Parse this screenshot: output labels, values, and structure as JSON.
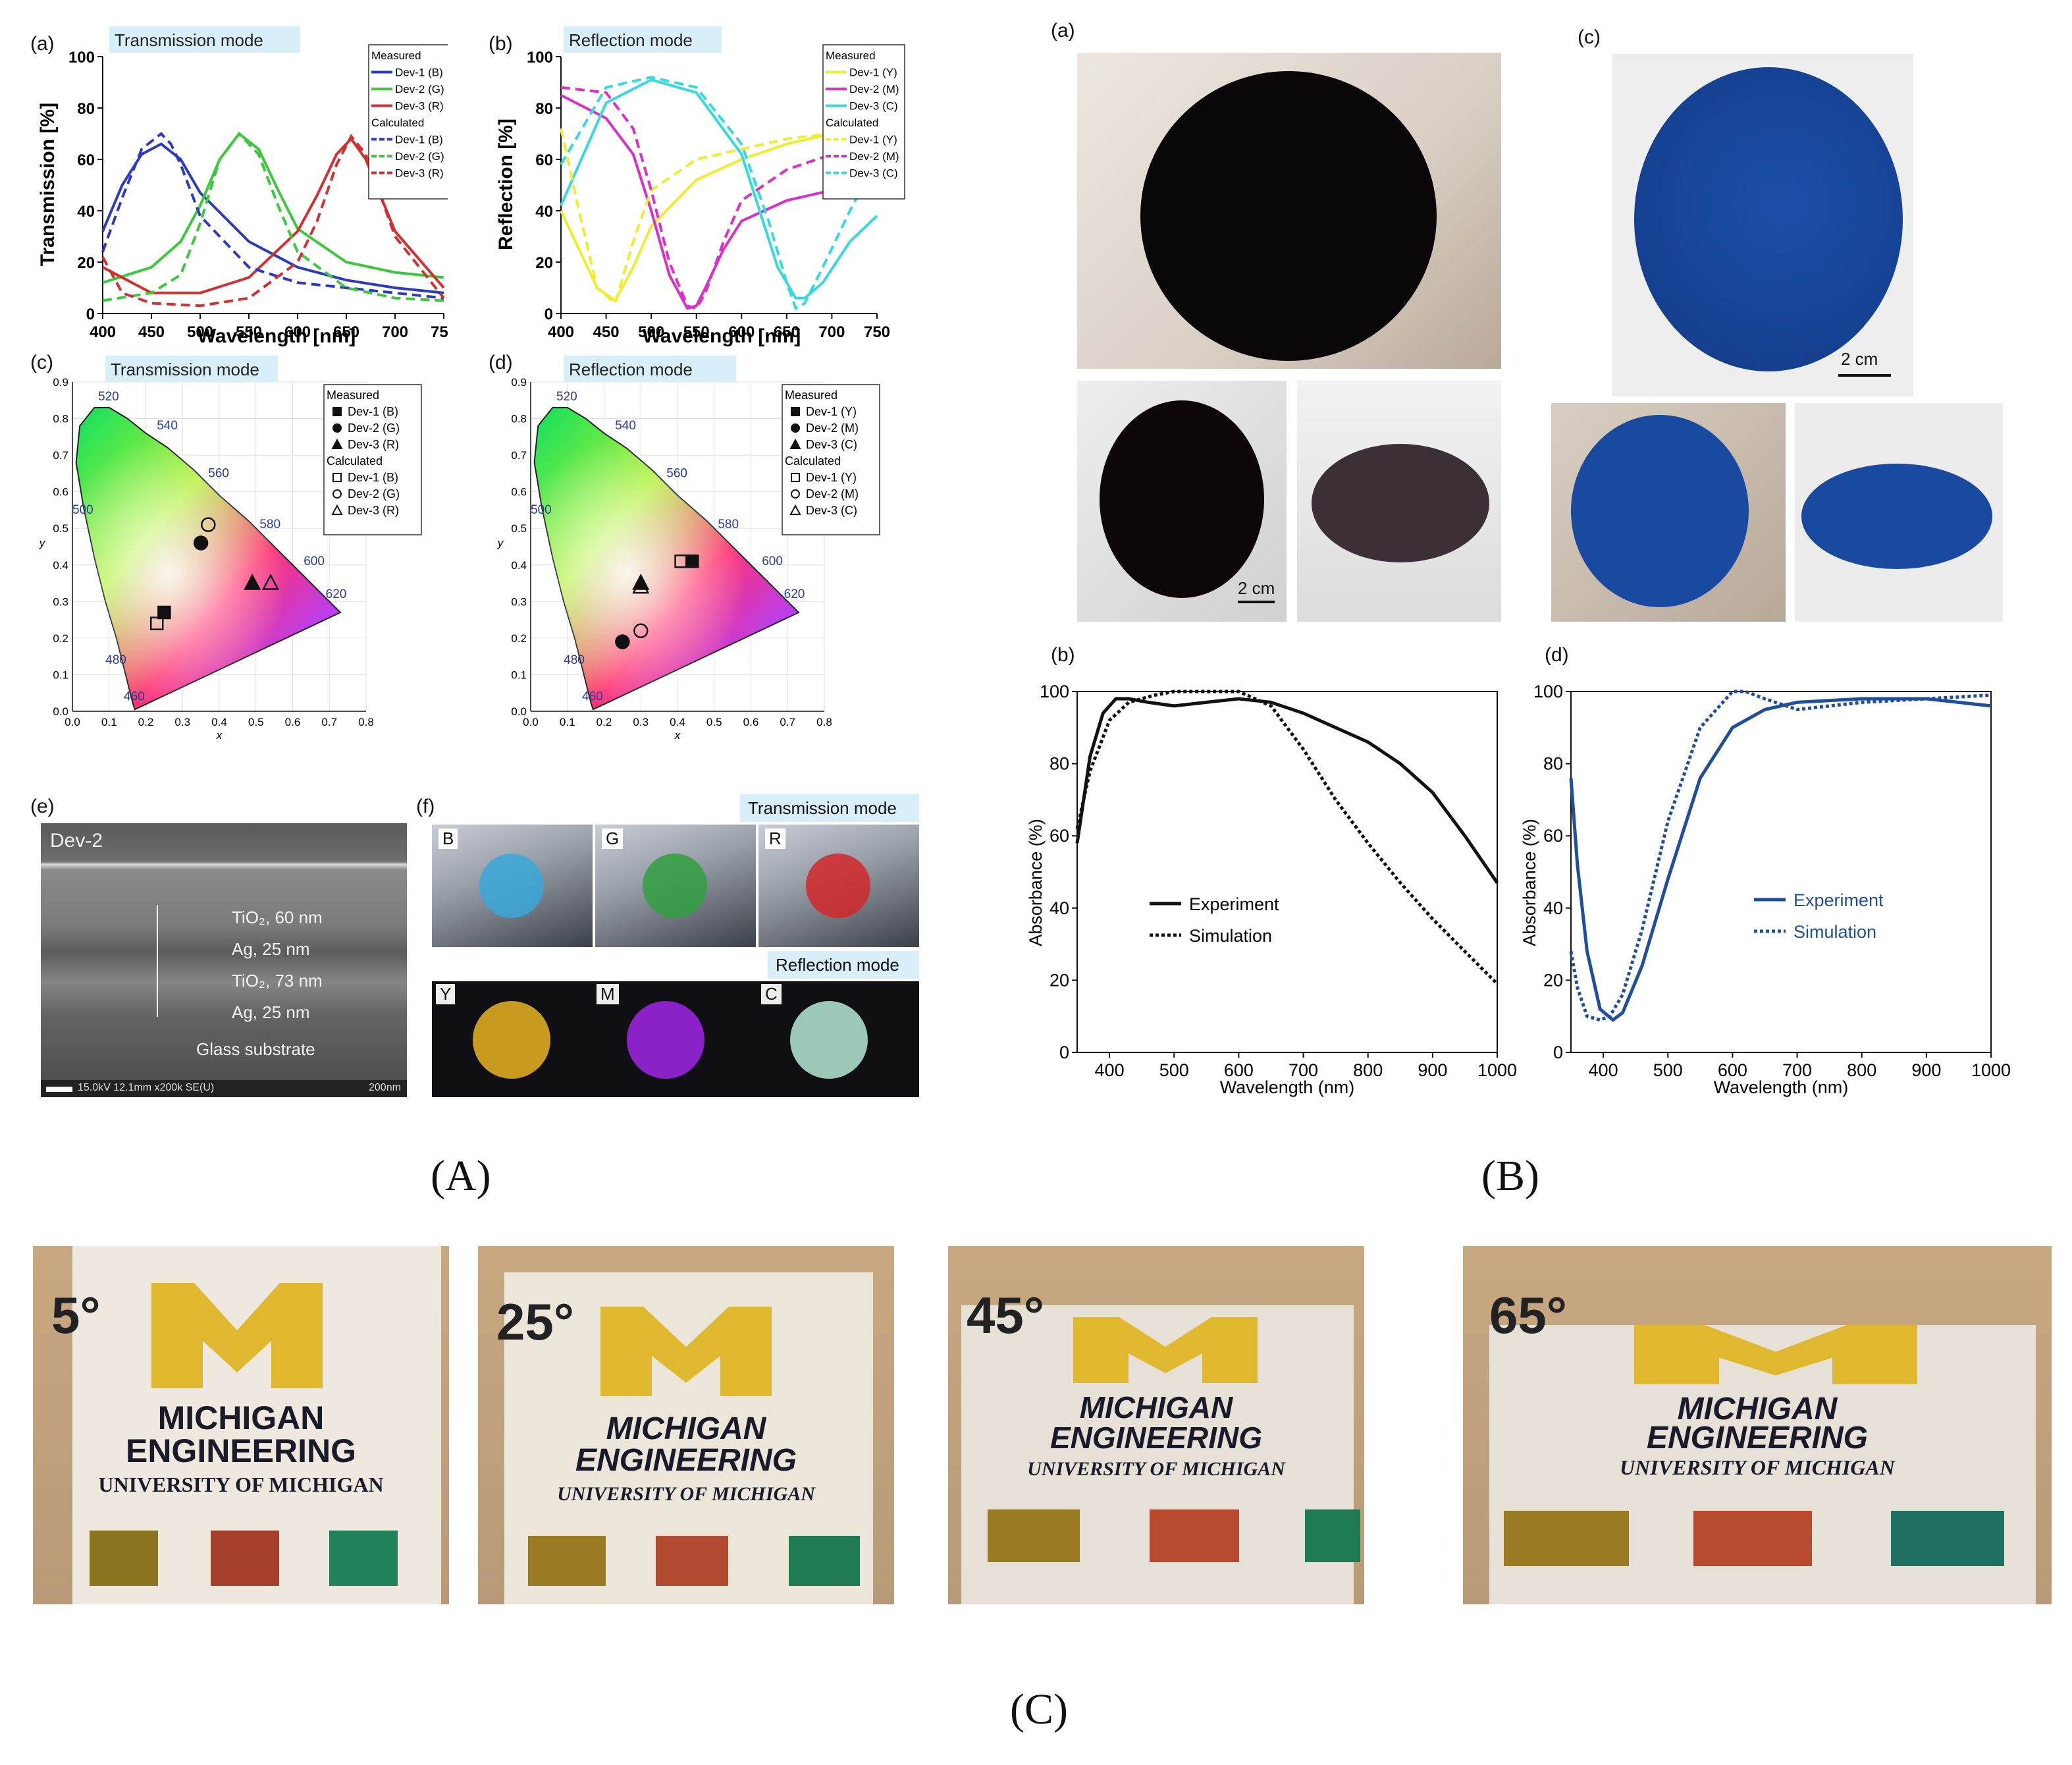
{
  "captions": {
    "A": "(A)",
    "B": "(B)",
    "C": "(C)"
  },
  "panelA": {
    "labels": {
      "a": "(a)",
      "b": "(b)",
      "c": "(c)",
      "d": "(d)",
      "e": "(e)",
      "f": "(f)"
    },
    "plot_a": {
      "mode_tag": "Transmission mode",
      "xlabel": "Wavelength [nm]",
      "ylabel": "Transmission [%]",
      "legend": {
        "measured_title": "Measured",
        "measured": [
          "Dev-1 (B)",
          "Dev-2 (G)",
          "Dev-3 (R)"
        ],
        "calculated_title": "Calculated",
        "calculated": [
          "Dev-1 (B)",
          "Dev-2 (G)",
          "Dev-3 (R)"
        ]
      }
    },
    "plot_b": {
      "mode_tag": "Reflection mode",
      "xlabel": "Wavelength [nm]",
      "ylabel": "Reflection [%]",
      "legend": {
        "measured_title": "Measured",
        "measured": [
          "Dev-1 (Y)",
          "Dev-2 (M)",
          "Dev-3 (C)"
        ],
        "calculated_title": "Calculated",
        "calculated": [
          "Dev-1 (Y)",
          "Dev-2 (M)",
          "Dev-3 (C)"
        ]
      }
    },
    "cie_c": {
      "mode_tag": "Transmission mode",
      "legend": {
        "measured_title": "Measured",
        "measured": [
          "Dev-1 (B)",
          "Dev-2 (G)",
          "Dev-3 (R)"
        ],
        "calculated_title": "Calculated",
        "calculated": [
          "Dev-1 (B)",
          "Dev-2 (G)",
          "Dev-3 (R)"
        ]
      }
    },
    "cie_d": {
      "mode_tag": "Reflection mode",
      "legend": {
        "measured_title": "Measured",
        "measured": [
          "Dev-1 (Y)",
          "Dev-2 (M)",
          "Dev-3 (C)"
        ],
        "calculated_title": "Calculated",
        "calculated": [
          "Dev-1 (Y)",
          "Dev-2 (M)",
          "Dev-3 (C)"
        ]
      }
    },
    "sem_e": {
      "device": "Dev-2",
      "layers": [
        "TiO₂, 60 nm",
        "Ag, 25 nm",
        "TiO₂, 73 nm",
        "Ag, 25 nm",
        "Glass substrate"
      ],
      "info": "15.0kV 12.1mm x200k SE(U)",
      "scale": "200nm"
    },
    "photos_f": {
      "transmission_tag": "Transmission mode",
      "reflection_tag": "Reflection mode",
      "transmission_letters": [
        "B",
        "G",
        "R"
      ],
      "reflection_letters": [
        "Y",
        "M",
        "C"
      ]
    }
  },
  "panelB": {
    "labels": {
      "a": "(a)",
      "b": "(b)",
      "c": "(c)",
      "d": "(d)"
    },
    "scale_left": "2 cm",
    "scale_right": "2 cm",
    "plot_b": {
      "xlabel": "Wavelength (nm)",
      "ylabel": "Absorbance (%)",
      "legend": [
        "Experiment",
        "Simulation"
      ]
    },
    "plot_d": {
      "xlabel": "Wavelength (nm)",
      "ylabel": "Absorbance (%)",
      "legend": [
        "Experiment",
        "Simulation"
      ]
    }
  },
  "panelC": {
    "photos": [
      {
        "angle": "5°"
      },
      {
        "angle": "25°"
      },
      {
        "angle": "45°"
      },
      {
        "angle": "65°"
      }
    ],
    "logo_lines": [
      "MICHIGAN",
      "ENGINEERING",
      "UNIVERSITY OF MICHIGAN"
    ]
  },
  "colors": {
    "blue": "#2b3bbf",
    "green": "#3cc83c",
    "red": "#d23030",
    "yellow": "#f0ec30",
    "magenta": "#d830c8",
    "cyan": "#38d8e0",
    "tag_bg": "#d8eef8",
    "navy": "#1f4e9a"
  },
  "chart_data": [
    {
      "id": "A-a",
      "type": "line",
      "title": "Transmission mode",
      "xlabel": "Wavelength [nm]",
      "ylabel": "Transmission [%]",
      "xlim": [
        400,
        750
      ],
      "ylim": [
        0,
        100
      ],
      "xticks": [
        400,
        450,
        500,
        550,
        600,
        650,
        700,
        750
      ],
      "yticks": [
        0,
        20,
        40,
        60,
        80,
        100
      ],
      "series": [
        {
          "name": "Measured Dev-1 (B)",
          "color": "#2b3bbf",
          "style": "solid",
          "x": [
            400,
            420,
            440,
            460,
            480,
            500,
            550,
            600,
            650,
            700,
            750
          ],
          "y": [
            32,
            50,
            62,
            66,
            60,
            47,
            28,
            18,
            13,
            10,
            8
          ]
        },
        {
          "name": "Measured Dev-2 (G)",
          "color": "#3cc83c",
          "style": "solid",
          "x": [
            400,
            450,
            480,
            500,
            520,
            540,
            560,
            580,
            600,
            650,
            700,
            750
          ],
          "y": [
            12,
            18,
            28,
            42,
            60,
            70,
            64,
            48,
            33,
            20,
            16,
            14
          ]
        },
        {
          "name": "Measured Dev-3 (R)",
          "color": "#d23030",
          "style": "solid",
          "x": [
            400,
            450,
            500,
            550,
            600,
            620,
            640,
            655,
            670,
            700,
            750
          ],
          "y": [
            18,
            8,
            8,
            14,
            32,
            46,
            62,
            68,
            60,
            32,
            10
          ]
        },
        {
          "name": "Calculated Dev-1 (B)",
          "color": "#2b3bbf",
          "style": "dashed",
          "x": [
            400,
            420,
            440,
            460,
            470,
            480,
            500,
            550,
            600,
            700,
            750
          ],
          "y": [
            24,
            45,
            64,
            70,
            66,
            58,
            38,
            18,
            12,
            8,
            6
          ]
        },
        {
          "name": "Calculated Dev-2 (G)",
          "color": "#3cc83c",
          "style": "dashed",
          "x": [
            400,
            450,
            480,
            500,
            520,
            540,
            560,
            580,
            600,
            650,
            700,
            750
          ],
          "y": [
            5,
            8,
            15,
            35,
            60,
            70,
            62,
            42,
            24,
            10,
            6,
            5
          ]
        },
        {
          "name": "Calculated Dev-3 (R)",
          "color": "#d23030",
          "style": "dashed",
          "x": [
            400,
            420,
            450,
            500,
            550,
            600,
            620,
            640,
            655,
            670,
            700,
            750
          ],
          "y": [
            22,
            8,
            4,
            3,
            6,
            20,
            36,
            58,
            69,
            62,
            30,
            6
          ]
        }
      ]
    },
    {
      "id": "A-b",
      "type": "line",
      "title": "Reflection mode",
      "xlabel": "Wavelength [nm]",
      "ylabel": "Reflection [%]",
      "xlim": [
        400,
        750
      ],
      "ylim": [
        0,
        100
      ],
      "xticks": [
        400,
        450,
        500,
        550,
        600,
        650,
        700,
        750
      ],
      "yticks": [
        0,
        20,
        40,
        60,
        80,
        100
      ],
      "series": [
        {
          "name": "Measured Dev-1 (Y)",
          "color": "#f0ec30",
          "style": "solid",
          "x": [
            400,
            420,
            440,
            460,
            480,
            500,
            550,
            600,
            650,
            700,
            750
          ],
          "y": [
            40,
            25,
            10,
            5,
            18,
            34,
            52,
            60,
            66,
            70,
            72
          ]
        },
        {
          "name": "Measured Dev-2 (M)",
          "color": "#d830c8",
          "style": "solid",
          "x": [
            400,
            450,
            480,
            500,
            520,
            540,
            550,
            560,
            580,
            600,
            650,
            700,
            750
          ],
          "y": [
            85,
            76,
            62,
            40,
            15,
            2,
            3,
            10,
            25,
            36,
            44,
            48,
            50
          ]
        },
        {
          "name": "Measured Dev-3 (C)",
          "color": "#38d8e0",
          "style": "solid",
          "x": [
            400,
            450,
            500,
            550,
            600,
            620,
            640,
            660,
            670,
            690,
            720,
            750
          ],
          "y": [
            42,
            82,
            91,
            86,
            62,
            40,
            18,
            6,
            6,
            12,
            28,
            38
          ]
        },
        {
          "name": "Calculated Dev-1 (Y)",
          "color": "#f0ec30",
          "style": "dashed",
          "x": [
            400,
            420,
            440,
            460,
            480,
            500,
            550,
            600,
            650,
            700,
            750
          ],
          "y": [
            72,
            40,
            10,
            4,
            28,
            48,
            60,
            64,
            68,
            70,
            72
          ]
        },
        {
          "name": "Calculated Dev-2 (M)",
          "color": "#d830c8",
          "style": "dashed",
          "x": [
            400,
            450,
            480,
            500,
            520,
            540,
            550,
            560,
            580,
            600,
            650,
            700,
            750
          ],
          "y": [
            88,
            86,
            72,
            48,
            20,
            3,
            2,
            8,
            28,
            44,
            56,
            62,
            66
          ]
        },
        {
          "name": "Calculated Dev-3 (C)",
          "color": "#38d8e0",
          "style": "dashed",
          "x": [
            400,
            450,
            500,
            550,
            600,
            630,
            650,
            660,
            670,
            690,
            720,
            750
          ],
          "y": [
            58,
            88,
            92,
            88,
            66,
            36,
            12,
            2,
            4,
            18,
            40,
            60
          ]
        }
      ]
    },
    {
      "id": "A-c",
      "type": "scatter",
      "title": "Transmission mode",
      "xlabel": "x",
      "ylabel": "y",
      "xlim": [
        0,
        0.8
      ],
      "ylim": [
        0,
        0.9
      ],
      "xticks": [
        0.0,
        0.1,
        0.2,
        0.3,
        0.4,
        0.5,
        0.6,
        0.7,
        0.8
      ],
      "yticks": [
        0.0,
        0.1,
        0.2,
        0.3,
        0.4,
        0.5,
        0.6,
        0.7,
        0.8,
        0.9
      ],
      "wavelength_marks": [
        "460",
        "480",
        "500",
        "520",
        "540",
        "560",
        "580",
        "600",
        "620"
      ],
      "series": [
        {
          "name": "Measured Dev-1 (B)",
          "marker": "filled-square",
          "x": [
            0.25
          ],
          "y": [
            0.27
          ]
        },
        {
          "name": "Measured Dev-2 (G)",
          "marker": "filled-circle",
          "x": [
            0.35
          ],
          "y": [
            0.46
          ]
        },
        {
          "name": "Measured Dev-3 (R)",
          "marker": "filled-triangle",
          "x": [
            0.49
          ],
          "y": [
            0.35
          ]
        },
        {
          "name": "Calculated Dev-1 (B)",
          "marker": "open-square",
          "x": [
            0.23
          ],
          "y": [
            0.24
          ]
        },
        {
          "name": "Calculated Dev-2 (G)",
          "marker": "open-circle",
          "x": [
            0.37
          ],
          "y": [
            0.51
          ]
        },
        {
          "name": "Calculated Dev-3 (R)",
          "marker": "open-triangle",
          "x": [
            0.54
          ],
          "y": [
            0.35
          ]
        }
      ]
    },
    {
      "id": "A-d",
      "type": "scatter",
      "title": "Reflection mode",
      "xlabel": "x",
      "ylabel": "y",
      "xlim": [
        0,
        0.8
      ],
      "ylim": [
        0,
        0.9
      ],
      "xticks": [
        0.0,
        0.1,
        0.2,
        0.3,
        0.4,
        0.5,
        0.6,
        0.7,
        0.8
      ],
      "yticks": [
        0.0,
        0.1,
        0.2,
        0.3,
        0.4,
        0.5,
        0.6,
        0.7,
        0.8,
        0.9
      ],
      "wavelength_marks": [
        "460",
        "480",
        "500",
        "520",
        "540",
        "560",
        "580",
        "600",
        "620"
      ],
      "series": [
        {
          "name": "Measured Dev-1 (Y)",
          "marker": "filled-square",
          "x": [
            0.44
          ],
          "y": [
            0.41
          ]
        },
        {
          "name": "Measured Dev-2 (M)",
          "marker": "filled-circle",
          "x": [
            0.25
          ],
          "y": [
            0.19
          ]
        },
        {
          "name": "Measured Dev-3 (C)",
          "marker": "filled-triangle",
          "x": [
            0.3
          ],
          "y": [
            0.35
          ]
        },
        {
          "name": "Calculated Dev-1 (Y)",
          "marker": "open-square",
          "x": [
            0.41
          ],
          "y": [
            0.41
          ]
        },
        {
          "name": "Calculated Dev-2 (M)",
          "marker": "open-circle",
          "x": [
            0.3
          ],
          "y": [
            0.22
          ]
        },
        {
          "name": "Calculated Dev-3 (C)",
          "marker": "open-triangle",
          "x": [
            0.3
          ],
          "y": [
            0.34
          ]
        }
      ]
    },
    {
      "id": "B-b",
      "type": "line",
      "xlabel": "Wavelength (nm)",
      "ylabel": "Absorbance (%)",
      "xlim": [
        350,
        1000
      ],
      "ylim": [
        0,
        100
      ],
      "xticks": [
        400,
        500,
        600,
        700,
        800,
        900,
        1000
      ],
      "yticks": [
        0,
        20,
        40,
        60,
        80,
        100
      ],
      "series": [
        {
          "name": "Experiment",
          "color": "#111111",
          "style": "solid",
          "x": [
            350,
            370,
            390,
            410,
            430,
            460,
            500,
            550,
            600,
            650,
            700,
            750,
            800,
            850,
            900,
            950,
            1000
          ],
          "y": [
            58,
            82,
            94,
            98,
            98,
            97,
            96,
            97,
            98,
            97,
            94,
            90,
            86,
            80,
            72,
            60,
            47
          ]
        },
        {
          "name": "Simulation",
          "color": "#111111",
          "style": "dotted",
          "x": [
            350,
            370,
            400,
            430,
            470,
            500,
            550,
            600,
            650,
            700,
            750,
            800,
            850,
            900,
            950,
            1000
          ],
          "y": [
            62,
            78,
            92,
            97,
            99,
            100,
            100,
            100,
            96,
            84,
            70,
            58,
            47,
            37,
            28,
            19
          ]
        }
      ]
    },
    {
      "id": "B-d",
      "type": "line",
      "xlabel": "Wavelength (nm)",
      "ylabel": "Absorbance (%)",
      "xlim": [
        350,
        1000
      ],
      "ylim": [
        0,
        100
      ],
      "xticks": [
        400,
        500,
        600,
        700,
        800,
        900,
        1000
      ],
      "yticks": [
        0,
        20,
        40,
        60,
        80,
        100
      ],
      "series": [
        {
          "name": "Experiment",
          "color": "#1f4e9a",
          "style": "solid",
          "x": [
            350,
            360,
            375,
            395,
            415,
            430,
            460,
            500,
            550,
            600,
            650,
            700,
            800,
            900,
            1000
          ],
          "y": [
            76,
            52,
            28,
            12,
            9,
            11,
            24,
            48,
            76,
            90,
            95,
            97,
            98,
            98,
            96
          ]
        },
        {
          "name": "Simulation",
          "color": "#1f4e9a",
          "style": "dotted",
          "x": [
            350,
            360,
            375,
            395,
            410,
            430,
            460,
            500,
            550,
            600,
            620,
            650,
            700,
            800,
            900,
            1000
          ],
          "y": [
            28,
            18,
            10,
            9,
            10,
            16,
            34,
            64,
            90,
            100,
            100,
            98,
            95,
            97,
            98,
            99
          ]
        }
      ]
    }
  ]
}
